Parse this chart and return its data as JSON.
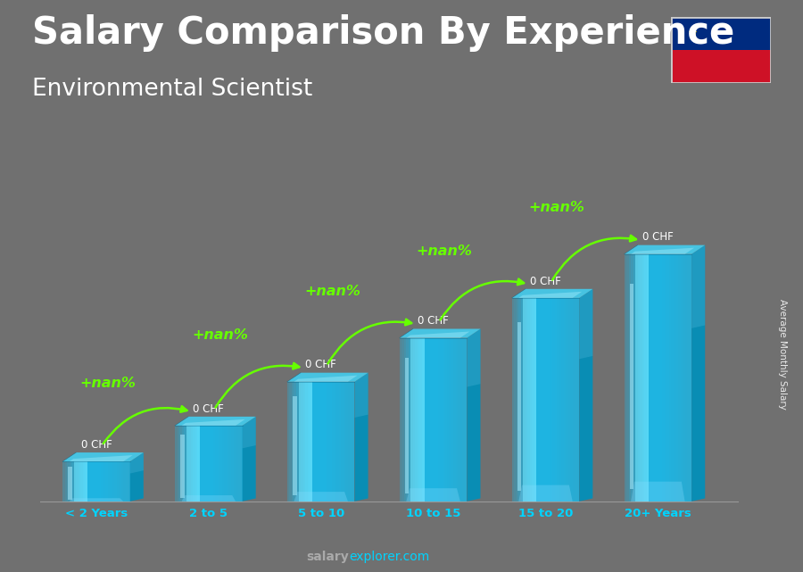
{
  "title": "Salary Comparison By Experience",
  "subtitle": "Environmental Scientist",
  "categories": [
    "< 2 Years",
    "2 to 5",
    "5 to 10",
    "10 to 15",
    "15 to 20",
    "20+ Years"
  ],
  "bar_labels": [
    "0 CHF",
    "0 CHF",
    "0 CHF",
    "0 CHF",
    "0 CHF",
    "0 CHF"
  ],
  "increase_labels": [
    "+nan%",
    "+nan%",
    "+nan%",
    "+nan%",
    "+nan%"
  ],
  "ylabel": "Average Monthly Salary",
  "footer_bold": "salary",
  "footer_normal": "explorer.com",
  "bg_color": "#707070",
  "title_color": "#ffffff",
  "subtitle_color": "#ffffff",
  "bar_label_color": "#ffffff",
  "increase_color": "#66ff00",
  "xlabel_color": "#00d4ff",
  "title_fontsize": 30,
  "subtitle_fontsize": 19,
  "bar_heights": [
    1.0,
    1.9,
    3.0,
    4.1,
    5.1,
    6.2
  ],
  "bar_front_color": "#1ab8e8",
  "bar_light_color": "#55d8f8",
  "bar_dark_color": "#0090bb",
  "bar_top_color": "#45c8e8",
  "flag_blue": "#002B7F",
  "flag_red": "#CE1126",
  "flag_crown": "#FFD700"
}
